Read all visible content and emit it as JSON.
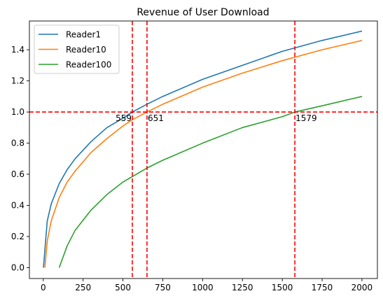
{
  "chart_data": {
    "type": "line",
    "title": "Revenue of User Download",
    "xlabel": "",
    "ylabel": "",
    "xlim": [
      -87,
      2097
    ],
    "ylim": [
      -0.07,
      1.585
    ],
    "xticks": [
      0,
      250,
      500,
      750,
      1000,
      1250,
      1500,
      1750,
      2000
    ],
    "yticks": [
      0.0,
      0.2,
      0.4,
      0.6,
      0.8,
      1.0,
      1.2,
      1.4
    ],
    "xtick_labels": [
      "0",
      "250",
      "500",
      "750",
      "1000",
      "1250",
      "1500",
      "1750",
      "2000"
    ],
    "ytick_labels": [
      "0.0",
      "0.2",
      "0.4",
      "0.6",
      "0.8",
      "1.0",
      "1.2",
      "1.4"
    ],
    "grid": false,
    "legend_position": "top-left",
    "series": [
      {
        "name": "Reader1",
        "color": "#1f77b4",
        "x": [
          1,
          25,
          50,
          100,
          150,
          200,
          300,
          400,
          500,
          559,
          651,
          750,
          1000,
          1250,
          1500,
          1750,
          2000
        ],
        "y": [
          0.0,
          0.3,
          0.41,
          0.54,
          0.63,
          0.7,
          0.81,
          0.9,
          0.96,
          1.0,
          1.05,
          1.1,
          1.21,
          1.3,
          1.39,
          1.46,
          1.52
        ]
      },
      {
        "name": "Reader10",
        "color": "#ff7f0e",
        "x": [
          10,
          25,
          50,
          100,
          150,
          200,
          300,
          400,
          500,
          559,
          651,
          750,
          1000,
          1250,
          1500,
          1750,
          2000
        ],
        "y": [
          0.0,
          0.17,
          0.3,
          0.45,
          0.55,
          0.62,
          0.74,
          0.83,
          0.91,
          0.95,
          1.0,
          1.05,
          1.16,
          1.25,
          1.33,
          1.4,
          1.46
        ]
      },
      {
        "name": "Reader100",
        "color": "#2ca02c",
        "x": [
          100,
          150,
          200,
          300,
          400,
          500,
          651,
          750,
          1000,
          1250,
          1500,
          1579,
          1750,
          2000
        ],
        "y": [
          0.0,
          0.14,
          0.24,
          0.37,
          0.47,
          0.55,
          0.64,
          0.69,
          0.8,
          0.9,
          0.97,
          1.0,
          1.04,
          1.1
        ]
      }
    ],
    "hlines": [
      {
        "y": 1.0,
        "color": "#ff0000",
        "style": "dashed"
      }
    ],
    "vlines": [
      {
        "x": 559,
        "color": "#ff0000",
        "style": "dashed"
      },
      {
        "x": 651,
        "color": "#ff0000",
        "style": "dashed"
      },
      {
        "x": 1579,
        "color": "#ff0000",
        "style": "dashed"
      }
    ],
    "annotations": [
      {
        "text": "559",
        "x": 559,
        "y": 1.0,
        "anchor": "end"
      },
      {
        "text": "651",
        "x": 651,
        "y": 1.0,
        "anchor": "start"
      },
      {
        "text": "1579",
        "x": 1579,
        "y": 1.0,
        "anchor": "start"
      }
    ]
  }
}
